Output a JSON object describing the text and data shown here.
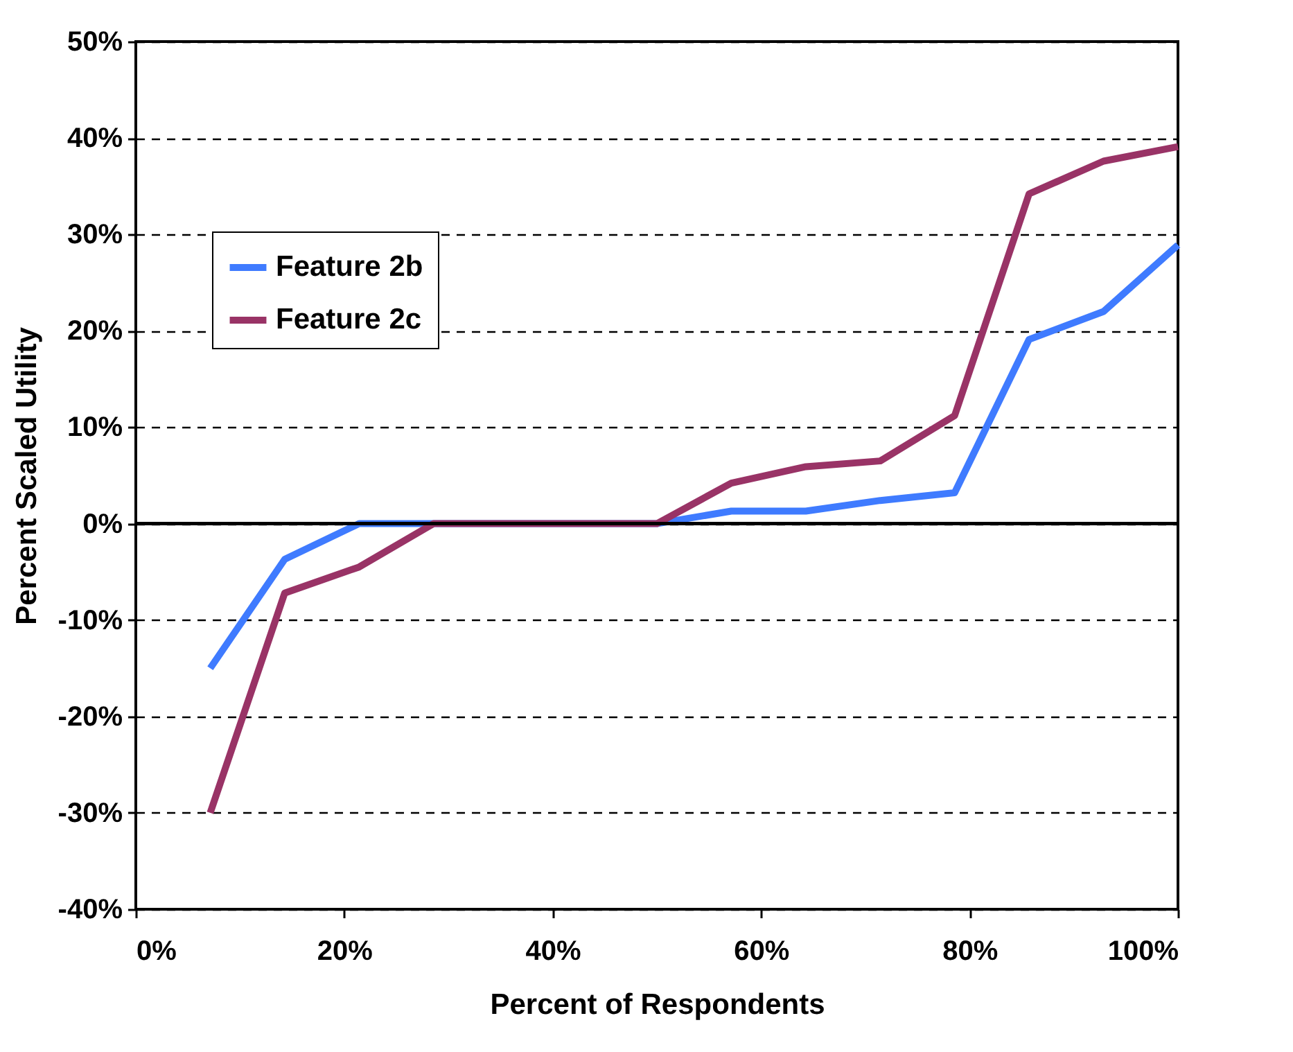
{
  "chart_data": {
    "type": "line",
    "xlabel": "Percent of Respondents",
    "ylabel": "Percent Scaled Utility",
    "x": [
      7.14,
      14.29,
      21.43,
      28.57,
      35.71,
      42.86,
      50,
      57.14,
      64.29,
      71.43,
      78.57,
      85.71,
      92.86,
      100
    ],
    "series": [
      {
        "name": "Feature 2b",
        "color": "#3f7bff",
        "values": [
          -15,
          -3.7,
          0,
          0,
          0,
          0,
          0,
          1.3,
          1.3,
          2.4,
          3.2,
          19.1,
          22,
          28.9
        ]
      },
      {
        "name": "Feature 2c",
        "color": "#993366",
        "values": [
          -30,
          -7.2,
          -4.5,
          0,
          0,
          0,
          0,
          4.2,
          5.9,
          6.5,
          11.2,
          34.2,
          37.6,
          39.1
        ]
      }
    ],
    "xlim": [
      0,
      100
    ],
    "xticks": [
      {
        "value": 0,
        "label": "0%"
      },
      {
        "value": 20,
        "label": "20%"
      },
      {
        "value": 40,
        "label": "40%"
      },
      {
        "value": 60,
        "label": "60%"
      },
      {
        "value": 80,
        "label": "80%"
      },
      {
        "value": 100,
        "label": "100%"
      }
    ],
    "ylim": [
      -40,
      50
    ],
    "yticks": [
      {
        "value": -40,
        "label": "-40%"
      },
      {
        "value": -30,
        "label": "-30%"
      },
      {
        "value": -20,
        "label": "-20%"
      },
      {
        "value": -10,
        "label": "-10%"
      },
      {
        "value": 0,
        "label": "0%"
      },
      {
        "value": 10,
        "label": "10%"
      },
      {
        "value": 20,
        "label": "20%"
      },
      {
        "value": 30,
        "label": "30%"
      },
      {
        "value": 40,
        "label": "40%"
      },
      {
        "value": 50,
        "label": "50%"
      }
    ],
    "ref_lines": [
      {
        "axis": "y",
        "value": 0,
        "color": "#000000"
      }
    ],
    "grid": "y",
    "legend": "top left",
    "marker": "none",
    "line_style": "solid"
  }
}
